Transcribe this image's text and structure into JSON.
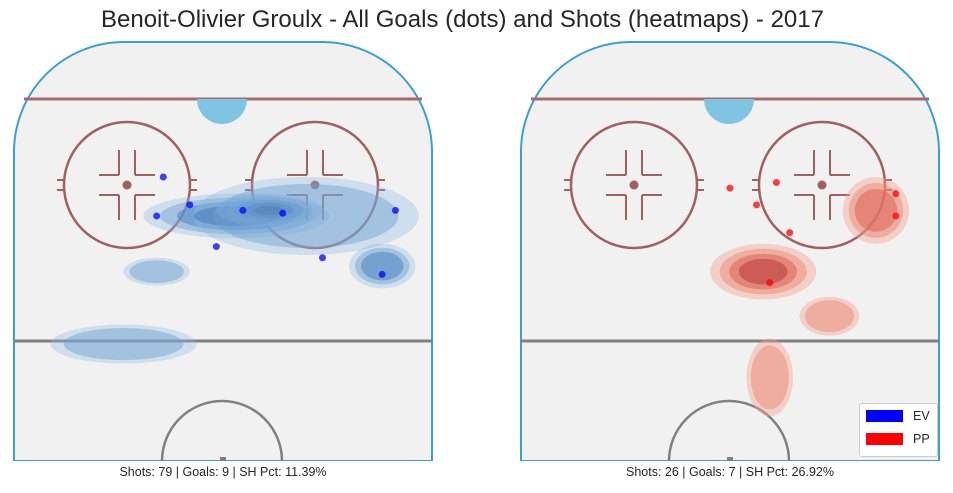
{
  "title": "Benoit-Olivier Groulx - All Goals (dots) and Shots (heatmaps) - 2017",
  "colors": {
    "ice": "#f1f1f1",
    "board": "#3aa0cf",
    "goal_line": "#a66a6a",
    "center_line": "#808080",
    "crease": "#7fc4e0",
    "faceoff": "#a06060",
    "ev": "#0000ff",
    "pp": "#ff0000"
  },
  "legend": {
    "items": [
      {
        "label": "EV",
        "color": "#0000ff"
      },
      {
        "label": "PP",
        "color": "#ff0000"
      }
    ]
  },
  "chart_data": [
    {
      "type": "scatter",
      "panel": "left",
      "strength": "EV",
      "caption": "Shots: 79 | Goals: 9 | SH Pct: 11.39%",
      "shots": 79,
      "goals": 9,
      "sh_pct": 11.39,
      "goal_dots": [
        {
          "x": 42,
          "y": 28
        },
        {
          "x": 40,
          "y": 42
        },
        {
          "x": 50,
          "y": 38
        },
        {
          "x": 58,
          "y": 53
        },
        {
          "x": 66,
          "y": 40
        },
        {
          "x": 78,
          "y": 41
        },
        {
          "x": 90,
          "y": 57
        },
        {
          "x": 108,
          "y": 63
        },
        {
          "x": 112,
          "y": 40
        }
      ],
      "heat_blobs": [
        {
          "x": 64,
          "y": 42,
          "rx": 28,
          "ry": 8,
          "level": 4
        },
        {
          "x": 74,
          "y": 40,
          "rx": 16,
          "ry": 6,
          "level": 5
        },
        {
          "x": 85,
          "y": 42,
          "rx": 34,
          "ry": 14,
          "level": 2
        },
        {
          "x": 108,
          "y": 60,
          "rx": 10,
          "ry": 8,
          "level": 3
        },
        {
          "x": 30,
          "y": 88,
          "rx": 22,
          "ry": 7,
          "level": 2
        },
        {
          "x": 40,
          "y": 62,
          "rx": 10,
          "ry": 5,
          "level": 2
        }
      ]
    },
    {
      "type": "scatter",
      "panel": "right",
      "strength": "PP",
      "caption": "Shots: 26 | Goals: 7 | SH Pct: 26.92%",
      "shots": 26,
      "goals": 7,
      "sh_pct": 26.92,
      "goal_dots": [
        {
          "x": 60,
          "y": 32
        },
        {
          "x": 68,
          "y": 38
        },
        {
          "x": 74,
          "y": 30
        },
        {
          "x": 78,
          "y": 48
        },
        {
          "x": 72,
          "y": 66
        },
        {
          "x": 110,
          "y": 42
        },
        {
          "x": 110,
          "y": 34
        }
      ],
      "heat_blobs": [
        {
          "x": 70,
          "y": 62,
          "rx": 16,
          "ry": 10,
          "level": 4
        },
        {
          "x": 104,
          "y": 40,
          "rx": 10,
          "ry": 12,
          "level": 3
        },
        {
          "x": 72,
          "y": 100,
          "rx": 7,
          "ry": 14,
          "level": 2
        },
        {
          "x": 90,
          "y": 78,
          "rx": 9,
          "ry": 7,
          "level": 2
        }
      ]
    }
  ]
}
